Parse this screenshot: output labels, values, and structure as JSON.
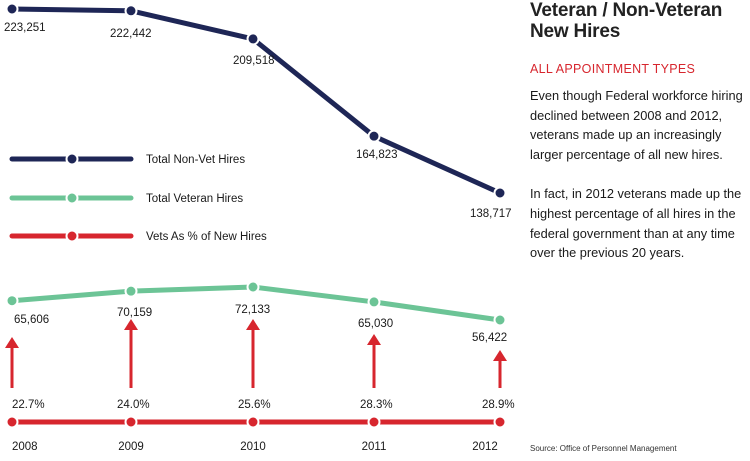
{
  "title": "Veteran / Non-Veteran New Hires",
  "subtitle": "ALL APPOINTMENT TYPES",
  "paragraphs": [
    "Even though Federal workforce hiring declined between 2008 and 2012, veterans made up an increasingly larger percentage of all new hires.",
    "In fact, in 2012 veterans made up the highest percentage of all hires in the federal government than at any time over the previous 20 years."
  ],
  "source": "Source: Office of Personnel Management",
  "colors": {
    "non_vet": "#1e2656",
    "veteran": "#6cc496",
    "vets_pct": "#d7262e"
  },
  "chart_data": {
    "type": "line",
    "categories": [
      "2008",
      "2009",
      "2010",
      "2011",
      "2012"
    ],
    "series": [
      {
        "name": "Total Non-Vet Hires",
        "values": [
          223251,
          222442,
          209518,
          164823,
          138717
        ],
        "labels": [
          "223,251",
          "222,442",
          "209,518",
          "164,823",
          "138,717"
        ]
      },
      {
        "name": "Total Veteran Hires",
        "values": [
          65606,
          70159,
          72133,
          65030,
          56422
        ],
        "labels": [
          "65,606",
          "70,159",
          "72,133",
          "65,030",
          "56,422"
        ]
      },
      {
        "name": "Vets As % of New Hires",
        "values": [
          22.7,
          24.0,
          25.6,
          28.3,
          28.9
        ],
        "labels": [
          "22.7%",
          "24.0%",
          "25.6%",
          "28.3%",
          "28.9%"
        ]
      }
    ],
    "legend_placement": "middle-left",
    "grid": false
  }
}
